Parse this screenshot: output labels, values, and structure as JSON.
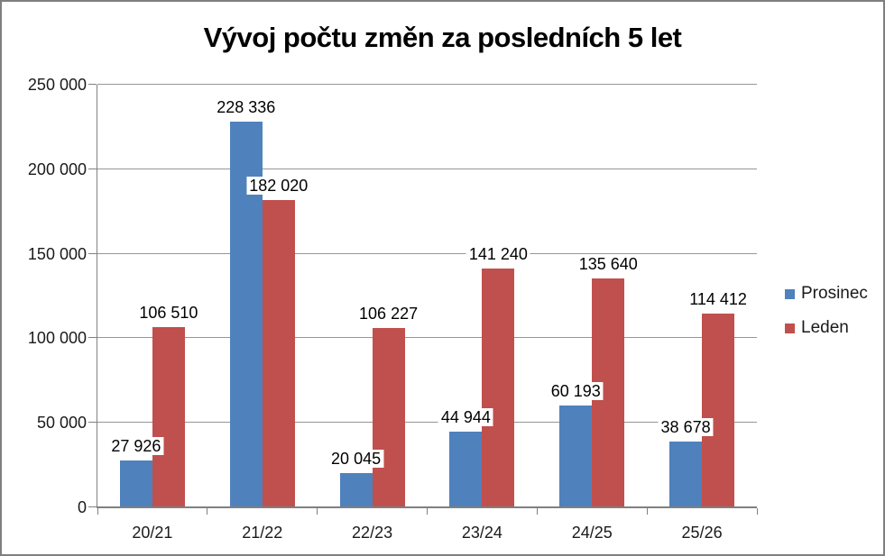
{
  "chart_data": {
    "type": "bar",
    "title": "Vývoj počtu změn za posledních 5 let",
    "categories": [
      "20/21",
      "21/22",
      "22/23",
      "23/24",
      "24/25",
      "25/26"
    ],
    "series": [
      {
        "name": "Prosinec",
        "color": "#4F81BD",
        "values": [
          27926,
          228336,
          20045,
          44944,
          60193,
          38678
        ],
        "value_labels": [
          "27 926",
          "228 336",
          "20 045",
          "44 944",
          "60 193",
          "38 678"
        ]
      },
      {
        "name": "Leden",
        "color": "#C0504D",
        "values": [
          106510,
          182020,
          106227,
          141240,
          135640,
          114412
        ],
        "value_labels": [
          "106 510",
          "182 020",
          "106 227",
          "141 240",
          "135 640",
          "114 412"
        ]
      }
    ],
    "ylim": [
      0,
      250000
    ],
    "ytick_values": [
      0,
      50000,
      100000,
      150000,
      200000,
      250000
    ],
    "ytick_labels": [
      "0",
      "50 000",
      "100 000",
      "150 000",
      "200 000",
      "250 000"
    ],
    "grid": true,
    "legend_position": "right",
    "data_labels_shown": true
  },
  "colors": {
    "frame_border": "#7f7f7f",
    "axis": "#808080",
    "gridline": "#969696",
    "text": "#1a1a1a",
    "data_label_bg": "#ffffff"
  }
}
